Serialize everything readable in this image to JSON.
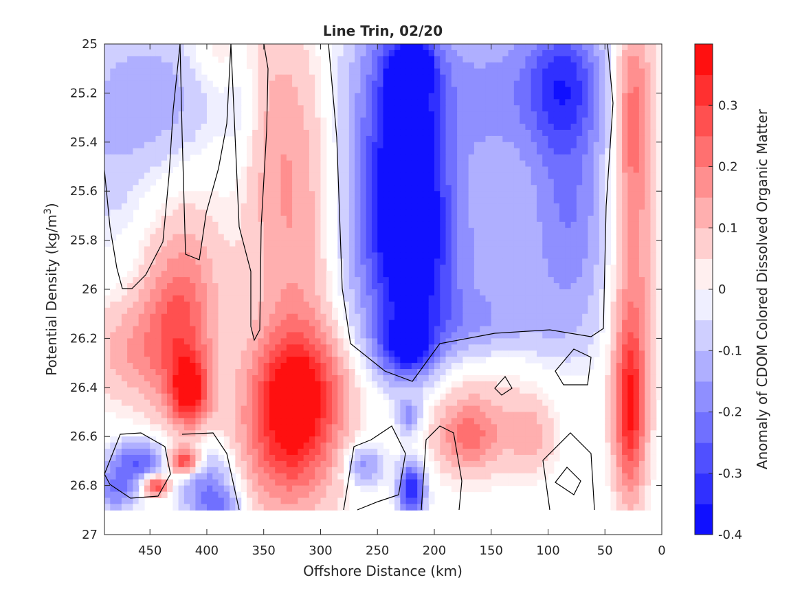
{
  "chart_data": {
    "type": "heatmap",
    "title": "Line Trin, 02/20",
    "xlabel": "Offshore Distance (km)",
    "ylabel": "Potential Density (kg/m",
    "ylabel_sup": "3",
    "ylabel_close": ")",
    "colorbar_label": "Anomaly of CDOM Colored Dissolved Organic Matter",
    "xlim": [
      490,
      0
    ],
    "ylim": [
      25,
      27
    ],
    "x_reversed": true,
    "y_reversed": true,
    "xticks": [
      450,
      400,
      350,
      300,
      250,
      200,
      150,
      100,
      50,
      0
    ],
    "yticks": [
      25,
      25.2,
      25.4,
      25.6,
      25.8,
      26,
      26.2,
      26.4,
      26.6,
      26.8,
      27
    ],
    "yticklabels": [
      "25",
      "25.2",
      "25.4",
      "25.6",
      "25.8",
      "26",
      "26.2",
      "26.4",
      "26.6",
      "26.8",
      "27"
    ],
    "colorbar_range": [
      -0.4,
      0.4
    ],
    "colorbar_ticks": [
      -0.4,
      -0.3,
      -0.2,
      -0.1,
      0,
      0.1,
      0.2,
      0.3
    ],
    "colorbar_ticklabels": [
      "-0.4",
      "-0.3",
      "-0.2",
      "-0.1",
      "0",
      "0.1",
      "0.2",
      "0.3"
    ],
    "colormap": {
      "negative": "#0000ff",
      "zero": "#ffffff",
      "positive": "#ff0000"
    },
    "data_y_max": 26.9,
    "features": [
      {
        "x": 220,
        "y": 25.1,
        "value": -0.36,
        "sx": 12,
        "sy": 0.06
      },
      {
        "x": 220,
        "y": 25.6,
        "value": -0.28,
        "sx": 22,
        "sy": 0.45
      },
      {
        "x": 238,
        "y": 25.3,
        "value": -0.22,
        "sx": 32,
        "sy": 0.35
      },
      {
        "x": 225,
        "y": 26.25,
        "value": -0.24,
        "sx": 18,
        "sy": 0.08
      },
      {
        "x": 230,
        "y": 25.9,
        "value": -0.2,
        "sx": 40,
        "sy": 0.25
      },
      {
        "x": 150,
        "y": 25.2,
        "value": -0.15,
        "sx": 40,
        "sy": 0.25
      },
      {
        "x": 150,
        "y": 25.9,
        "value": -0.08,
        "sx": 40,
        "sy": 0.3
      },
      {
        "x": 85,
        "y": 25.15,
        "value": -0.26,
        "sx": 25,
        "sy": 0.2
      },
      {
        "x": 80,
        "y": 25.7,
        "value": -0.18,
        "sx": 25,
        "sy": 0.35
      },
      {
        "x": 170,
        "y": 26.15,
        "value": -0.1,
        "sx": 55,
        "sy": 0.1
      },
      {
        "x": 440,
        "y": 25.2,
        "value": -0.12,
        "sx": 35,
        "sy": 0.2
      },
      {
        "x": 490,
        "y": 25.4,
        "value": -0.08,
        "sx": 30,
        "sy": 0.3
      },
      {
        "x": 370,
        "y": 25.25,
        "value": -0.07,
        "sx": 12,
        "sy": 0.2
      },
      {
        "x": 320,
        "y": 26.4,
        "value": 0.28,
        "sx": 28,
        "sy": 0.18
      },
      {
        "x": 330,
        "y": 26.65,
        "value": 0.22,
        "sx": 30,
        "sy": 0.2
      },
      {
        "x": 320,
        "y": 25.9,
        "value": 0.14,
        "sx": 28,
        "sy": 0.5
      },
      {
        "x": 340,
        "y": 25.3,
        "value": 0.08,
        "sx": 25,
        "sy": 0.35
      },
      {
        "x": 415,
        "y": 26.42,
        "value": 0.32,
        "sx": 12,
        "sy": 0.1
      },
      {
        "x": 425,
        "y": 26.2,
        "value": 0.2,
        "sx": 22,
        "sy": 0.22
      },
      {
        "x": 420,
        "y": 25.95,
        "value": 0.1,
        "sx": 25,
        "sy": 0.25
      },
      {
        "x": 470,
        "y": 26.25,
        "value": 0.12,
        "sx": 25,
        "sy": 0.15
      },
      {
        "x": 420,
        "y": 26.7,
        "value": 0.36,
        "sx": 10,
        "sy": 0.04
      },
      {
        "x": 445,
        "y": 26.8,
        "value": 0.34,
        "sx": 8,
        "sy": 0.03
      },
      {
        "x": 28,
        "y": 26.5,
        "value": 0.34,
        "sx": 10,
        "sy": 0.25
      },
      {
        "x": 25,
        "y": 25.3,
        "value": 0.24,
        "sx": 12,
        "sy": 0.3
      },
      {
        "x": 25,
        "y": 26.0,
        "value": 0.14,
        "sx": 14,
        "sy": 0.3
      },
      {
        "x": 170,
        "y": 26.6,
        "value": 0.18,
        "sx": 20,
        "sy": 0.1
      },
      {
        "x": 160,
        "y": 26.45,
        "value": 0.08,
        "sx": 45,
        "sy": 0.2
      },
      {
        "x": 115,
        "y": 26.6,
        "value": 0.1,
        "sx": 14,
        "sy": 0.1
      },
      {
        "x": 460,
        "y": 26.7,
        "value": -0.25,
        "sx": 18,
        "sy": 0.06
      },
      {
        "x": 480,
        "y": 26.82,
        "value": -0.2,
        "sx": 14,
        "sy": 0.06
      },
      {
        "x": 400,
        "y": 26.78,
        "value": -0.18,
        "sx": 18,
        "sy": 0.1
      },
      {
        "x": 390,
        "y": 26.88,
        "value": -0.15,
        "sx": 15,
        "sy": 0.05
      },
      {
        "x": 220,
        "y": 26.82,
        "value": -0.36,
        "sx": 8,
        "sy": 0.08
      },
      {
        "x": 262,
        "y": 26.72,
        "value": -0.18,
        "sx": 12,
        "sy": 0.06
      },
      {
        "x": 222,
        "y": 26.52,
        "value": -0.16,
        "sx": 7,
        "sy": 0.05
      },
      {
        "x": 390,
        "y": 25.05,
        "value": 0.06,
        "sx": 20,
        "sy": 0.1
      }
    ]
  }
}
